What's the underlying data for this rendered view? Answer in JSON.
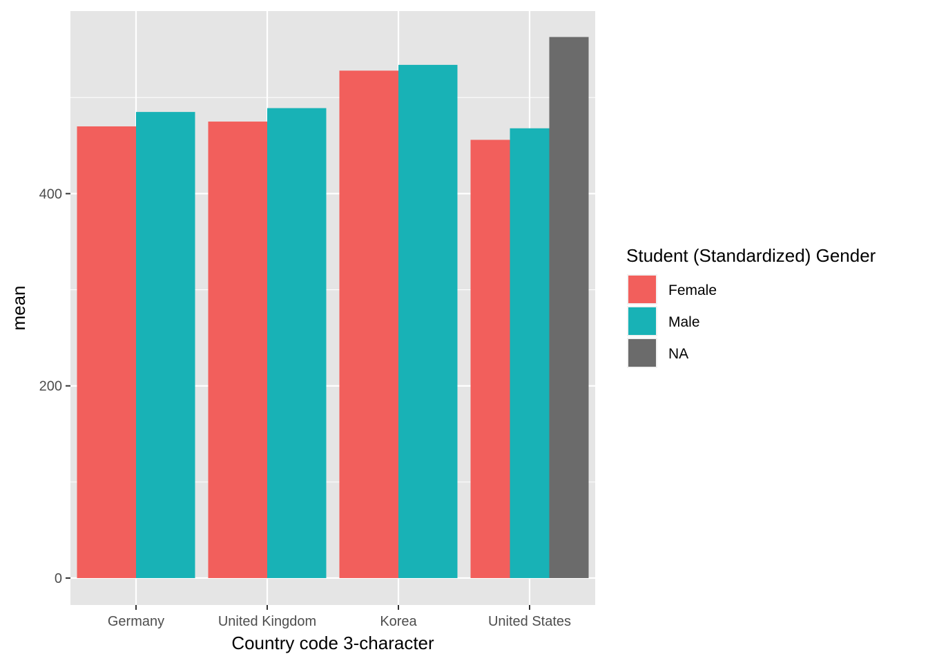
{
  "chart_data": {
    "type": "bar",
    "title": "",
    "xlabel": "Country code 3-character",
    "ylabel": "mean",
    "categories": [
      "Germany",
      "United Kingdom",
      "Korea",
      "United States"
    ],
    "series": [
      {
        "name": "Female",
        "color": "#F8766D",
        "values": [
          470,
          475,
          528,
          456
        ]
      },
      {
        "name": "Male",
        "color": "#00BFC4",
        "values": [
          485,
          489,
          534,
          468
        ]
      },
      {
        "name": "NA",
        "color": "#6B6B6B",
        "values": [
          null,
          null,
          null,
          563
        ]
      }
    ],
    "ylim": [
      -28,
      590
    ],
    "yticks": [
      0,
      200,
      400
    ],
    "grid": true,
    "legend": {
      "title": "Student (Standardized) Gender",
      "position": "right"
    },
    "bar_colors_fill_rgb": {
      "Female": "#F25F5C",
      "Male": "#18B2B6",
      "NA": "#6B6B6B"
    },
    "panel_background": "#E5E5E5",
    "grid_color": "#FFFFFF"
  }
}
